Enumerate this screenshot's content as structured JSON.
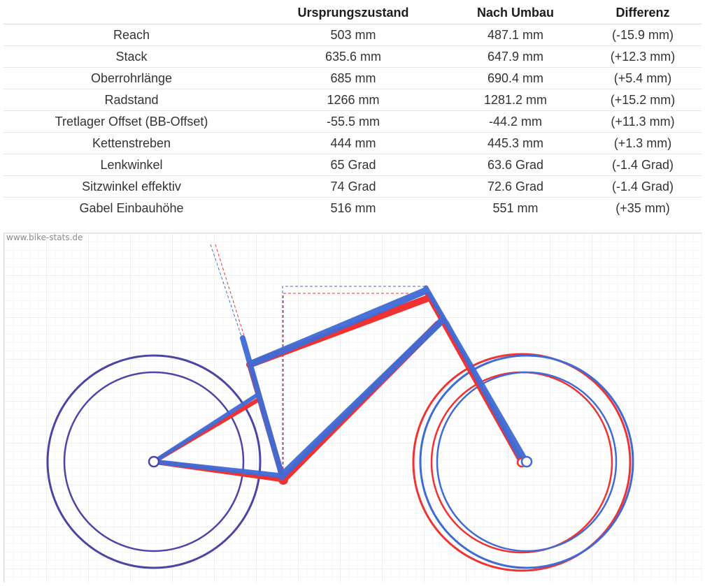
{
  "table": {
    "headers": [
      "",
      "Ursprungszustand",
      "Nach Umbau",
      "Differenz"
    ],
    "rows": [
      {
        "label": "Reach",
        "before": "503 mm",
        "after": "487.1 mm",
        "diff": "(-15.9 mm)",
        "sign": "neg"
      },
      {
        "label": "Stack",
        "before": "635.6 mm",
        "after": "647.9 mm",
        "diff": "(+12.3 mm)",
        "sign": "pos"
      },
      {
        "label": "Oberrohrlänge",
        "before": "685 mm",
        "after": "690.4 mm",
        "diff": "(+5.4 mm)",
        "sign": "pos"
      },
      {
        "label": "Radstand",
        "before": "1266 mm",
        "after": "1281.2 mm",
        "diff": "(+15.2 mm)",
        "sign": "pos"
      },
      {
        "label": "Tretlager Offset (BB-Offset)",
        "before": "-55.5 mm",
        "after": "-44.2 mm",
        "diff": "(+11.3 mm)",
        "sign": "pos"
      },
      {
        "label": "Kettenstreben",
        "before": "444 mm",
        "after": "445.3 mm",
        "diff": "(+1.3 mm)",
        "sign": "pos"
      },
      {
        "label": "Lenkwinkel",
        "before": "65 Grad",
        "after": "63.6 Grad",
        "diff": "(-1.4 Grad)",
        "sign": "neg"
      },
      {
        "label": "Sitzwinkel effektiv",
        "before": "74 Grad",
        "after": "72.6 Grad",
        "diff": "(-1.4 Grad)",
        "sign": "neg"
      },
      {
        "label": "Gabel Einbauhöhe",
        "before": "516 mm",
        "after": "551 mm",
        "diff": "(+35 mm)",
        "sign": "pos"
      }
    ]
  },
  "drawing": {
    "watermark": "www.bike-stats.de",
    "colors": {
      "original": "#3f6bd6",
      "modified": "#f03232",
      "overlap": "#4b45a8",
      "grid": "#dcdcdc",
      "neg": "#1f2fe0",
      "pos": "#f01e1e"
    }
  }
}
